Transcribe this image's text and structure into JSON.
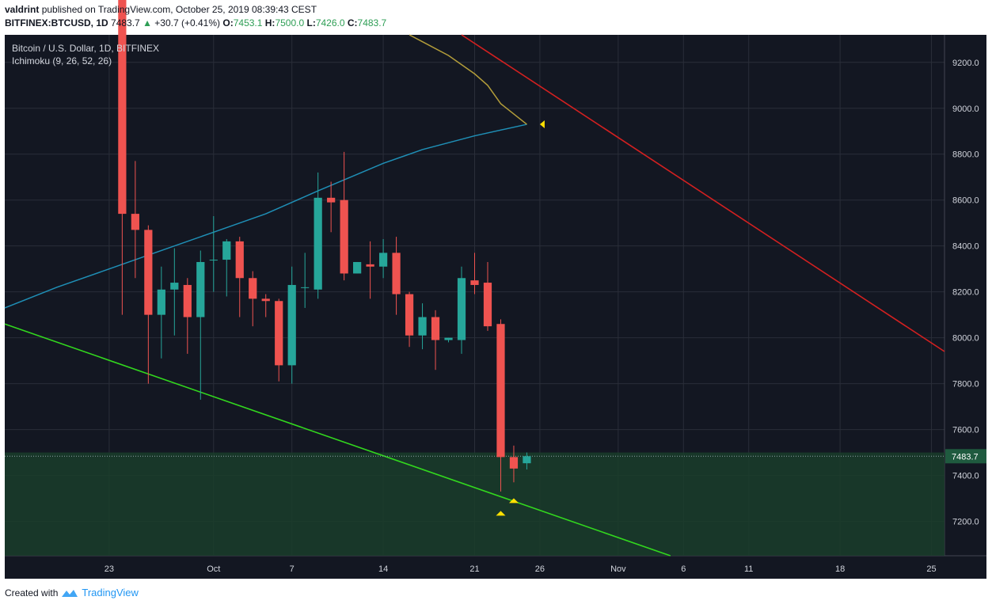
{
  "header": {
    "author": "valdrint",
    "published_text": "published on TradingView.com, October 25, 2019 08:39:43 CEST",
    "symbol": "BITFINEX:BTCUSD, 1D",
    "last": "7483.7",
    "change": "+30.7 (+0.41%)",
    "open_label": "O:",
    "open": "7453.1",
    "high_label": "H:",
    "high": "7500.0",
    "low_label": "L:",
    "low": "7426.0",
    "close_label": "C:",
    "close": "7483.7"
  },
  "legend": {
    "title": "Bitcoin / U.S. Dollar, 1D, BITFINEX",
    "indicator": "Ichimoku (9, 26, 52, 26)"
  },
  "footer": {
    "created_with": "Created with",
    "brand": "TradingView"
  },
  "colors": {
    "background": "#131722",
    "grid": "#2a2e39",
    "up": "#26a69a",
    "down": "#ef5350",
    "zone": "#1a3d2a",
    "support": "#32d71e",
    "resistance": "#d32020",
    "ichimoku_baseline": "#1f8fb6",
    "ichimoku_lagging": "#b39d3a",
    "marker": "#ffe000"
  },
  "chart_data": {
    "type": "candlestick",
    "y_axis": {
      "min": 7050,
      "max": 9320,
      "ticks": [
        7200,
        7400,
        7600,
        7800,
        8000,
        8200,
        8400,
        8600,
        8800,
        9000,
        9200
      ],
      "tick_labels": [
        "7200.0",
        "7400.0",
        "7600.0",
        "7800.0",
        "8000.0",
        "8200.0",
        "8400.0",
        "8600.0",
        "8800.0",
        "9000.0",
        "9200.0"
      ]
    },
    "x_axis": {
      "start": "2019-09-15",
      "end": "2019-11-26",
      "ticks": [
        {
          "date": "2019-09-23",
          "label": "23"
        },
        {
          "date": "2019-10-01",
          "label": "Oct"
        },
        {
          "date": "2019-10-07",
          "label": "7"
        },
        {
          "date": "2019-10-14",
          "label": "14"
        },
        {
          "date": "2019-10-21",
          "label": "21"
        },
        {
          "date": "2019-10-26",
          "label": "26"
        },
        {
          "date": "2019-11-01",
          "label": "Nov"
        },
        {
          "date": "2019-11-06",
          "label": "6"
        },
        {
          "date": "2019-11-11",
          "label": "11"
        },
        {
          "date": "2019-11-18",
          "label": "18"
        },
        {
          "date": "2019-11-25",
          "label": "25"
        }
      ]
    },
    "candles": [
      {
        "date": "2019-09-24",
        "o": 9690,
        "h": 9700,
        "l": 8100,
        "c": 8540
      },
      {
        "date": "2019-09-25",
        "o": 8540,
        "h": 8770,
        "l": 8260,
        "c": 8470
      },
      {
        "date": "2019-09-26",
        "o": 8470,
        "h": 8490,
        "l": 7800,
        "c": 8100
      },
      {
        "date": "2019-09-27",
        "o": 8100,
        "h": 8310,
        "l": 7910,
        "c": 8210
      },
      {
        "date": "2019-09-28",
        "o": 8210,
        "h": 8390,
        "l": 8010,
        "c": 8240
      },
      {
        "date": "2019-09-29",
        "o": 8230,
        "h": 8260,
        "l": 7930,
        "c": 8090
      },
      {
        "date": "2019-09-30",
        "o": 8090,
        "h": 8380,
        "l": 7730,
        "c": 8330
      },
      {
        "date": "2019-10-01",
        "o": 8340,
        "h": 8530,
        "l": 8200,
        "c": 8340
      },
      {
        "date": "2019-10-02",
        "o": 8340,
        "h": 8430,
        "l": 8180,
        "c": 8420
      },
      {
        "date": "2019-10-03",
        "o": 8420,
        "h": 8440,
        "l": 8090,
        "c": 8260
      },
      {
        "date": "2019-10-04",
        "o": 8260,
        "h": 8290,
        "l": 8050,
        "c": 8170
      },
      {
        "date": "2019-10-05",
        "o": 8170,
        "h": 8190,
        "l": 8090,
        "c": 8160
      },
      {
        "date": "2019-10-06",
        "o": 8160,
        "h": 8170,
        "l": 7810,
        "c": 7880
      },
      {
        "date": "2019-10-07",
        "o": 7880,
        "h": 8310,
        "l": 7800,
        "c": 8230
      },
      {
        "date": "2019-10-08",
        "o": 8220,
        "h": 8370,
        "l": 8130,
        "c": 8220
      },
      {
        "date": "2019-10-09",
        "o": 8210,
        "h": 8720,
        "l": 8170,
        "c": 8610
      },
      {
        "date": "2019-10-10",
        "o": 8610,
        "h": 8680,
        "l": 8460,
        "c": 8590
      },
      {
        "date": "2019-10-11",
        "o": 8600,
        "h": 8810,
        "l": 8250,
        "c": 8280
      },
      {
        "date": "2019-10-12",
        "o": 8280,
        "h": 8330,
        "l": 8280,
        "c": 8330
      },
      {
        "date": "2019-10-13",
        "o": 8320,
        "h": 8420,
        "l": 8170,
        "c": 8310
      },
      {
        "date": "2019-10-14",
        "o": 8310,
        "h": 8430,
        "l": 8260,
        "c": 8370
      },
      {
        "date": "2019-10-15",
        "o": 8370,
        "h": 8440,
        "l": 8100,
        "c": 8190
      },
      {
        "date": "2019-10-16",
        "o": 8190,
        "h": 8200,
        "l": 7960,
        "c": 8010
      },
      {
        "date": "2019-10-17",
        "o": 8010,
        "h": 8150,
        "l": 7950,
        "c": 8090
      },
      {
        "date": "2019-10-18",
        "o": 8090,
        "h": 8120,
        "l": 7860,
        "c": 7990
      },
      {
        "date": "2019-10-19",
        "o": 7990,
        "h": 8000,
        "l": 7980,
        "c": 8000
      },
      {
        "date": "2019-10-20",
        "o": 7990,
        "h": 8310,
        "l": 7930,
        "c": 8260
      },
      {
        "date": "2019-10-21",
        "o": 8250,
        "h": 8370,
        "l": 8190,
        "c": 8230
      },
      {
        "date": "2019-10-22",
        "o": 8240,
        "h": 8330,
        "l": 8030,
        "c": 8050
      },
      {
        "date": "2019-10-23",
        "o": 8060,
        "h": 8080,
        "l": 7330,
        "c": 7480
      },
      {
        "date": "2019-10-24",
        "o": 7480,
        "h": 7530,
        "l": 7370,
        "c": 7430
      },
      {
        "date": "2019-10-25",
        "o": 7453.1,
        "h": 7500,
        "l": 7426,
        "c": 7483.7
      }
    ],
    "baseline": [
      {
        "date": "2019-09-15",
        "y": 8130
      },
      {
        "date": "2019-09-19",
        "y": 8220
      },
      {
        "date": "2019-09-23",
        "y": 8300
      },
      {
        "date": "2019-09-27",
        "y": 8380
      },
      {
        "date": "2019-10-01",
        "y": 8460
      },
      {
        "date": "2019-10-05",
        "y": 8540
      },
      {
        "date": "2019-10-09",
        "y": 8640
      },
      {
        "date": "2019-10-14",
        "y": 8760
      },
      {
        "date": "2019-10-17",
        "y": 8820
      },
      {
        "date": "2019-10-21",
        "y": 8880
      },
      {
        "date": "2019-10-25",
        "y": 8930
      }
    ],
    "lagging": [
      {
        "date": "2019-10-16",
        "y": 9320
      },
      {
        "date": "2019-10-17",
        "y": 9290
      },
      {
        "date": "2019-10-19",
        "y": 9230
      },
      {
        "date": "2019-10-21",
        "y": 9150
      },
      {
        "date": "2019-10-22",
        "y": 9100
      },
      {
        "date": "2019-10-23",
        "y": 9020
      },
      {
        "date": "2019-10-25",
        "y": 8930
      }
    ],
    "support_line": {
      "from": {
        "date": "2019-09-15",
        "y": 8060
      },
      "to": {
        "date": "2019-11-05",
        "y": 7050
      }
    },
    "resistance_line": {
      "from": {
        "date": "2019-10-20",
        "y": 9320
      },
      "to": {
        "date": "2019-11-26",
        "y": 7940
      }
    },
    "zone": {
      "from": 7050,
      "to": 7500
    },
    "current_price": 7483.7,
    "current_price_label": "7483.7",
    "markers": [
      {
        "date": "2019-10-26",
        "y": 8930,
        "dir": "left"
      },
      {
        "date": "2019-10-24",
        "y": 7290,
        "dir": "up"
      },
      {
        "date": "2019-10-23",
        "y": 7235,
        "dir": "up"
      }
    ]
  }
}
